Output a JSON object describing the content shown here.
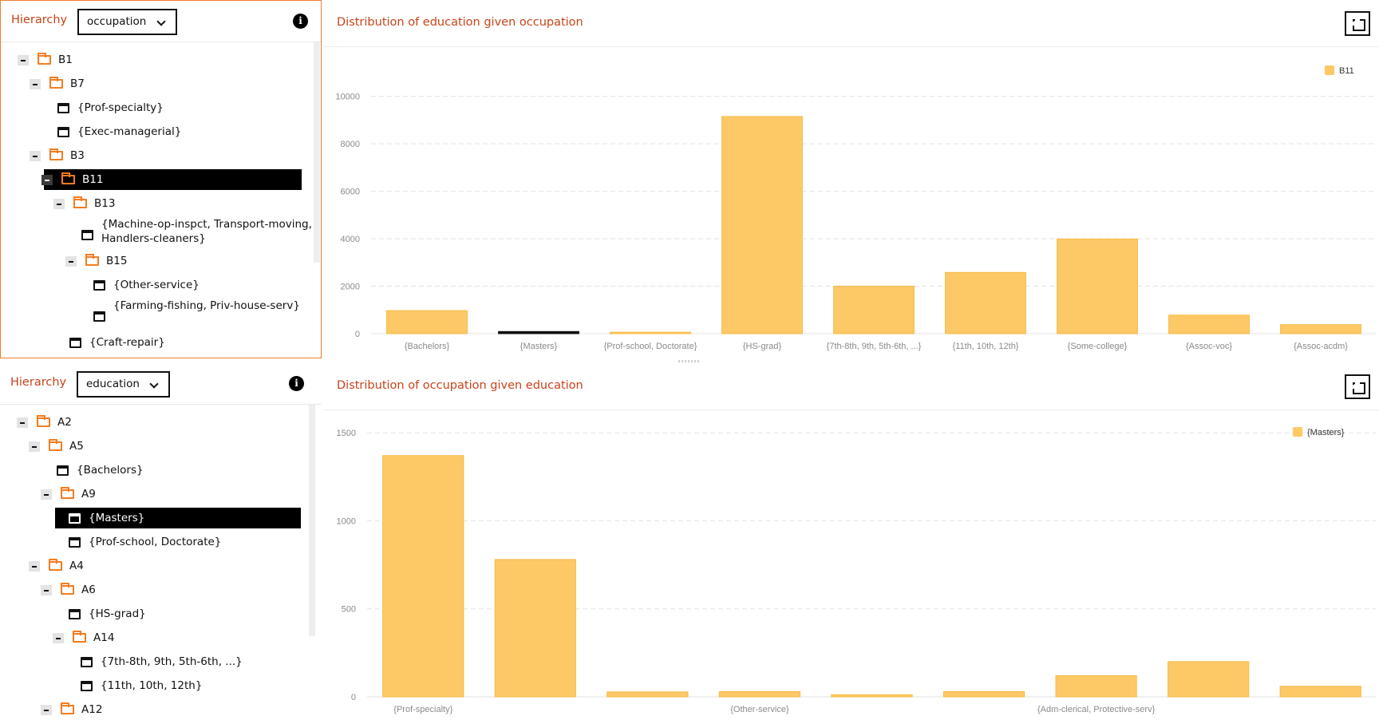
{
  "top": {
    "hierarchy_label": "Hierarchy",
    "select_value": "occupation",
    "chart_title": "Distribution of education given occupation",
    "tree": [
      {
        "label": "B1",
        "kind": "folder",
        "depth": 0
      },
      {
        "label": "B7",
        "kind": "folder",
        "depth": 1
      },
      {
        "label": "{Prof-specialty}",
        "kind": "leaf",
        "depth": 2
      },
      {
        "label": "{Exec-managerial}",
        "kind": "leaf",
        "depth": 2
      },
      {
        "label": "B3",
        "kind": "folder",
        "depth": 1
      },
      {
        "label": "B11",
        "kind": "folder",
        "depth": 2,
        "selected": true
      },
      {
        "label": "B13",
        "kind": "folder",
        "depth": 3
      },
      {
        "label": "{Machine-op-inspct, Transport-moving, Handlers-cleaners}",
        "kind": "leaf",
        "depth": 4,
        "wrap": true
      },
      {
        "label": "B15",
        "kind": "folder",
        "depth": 4
      },
      {
        "label": "{Other-service}",
        "kind": "leaf",
        "depth": 5
      },
      {
        "label": "{Farming-fishing, Priv-house-serv}",
        "kind": "leaf",
        "depth": 5,
        "wrap": true
      },
      {
        "label": "{Craft-repair}",
        "kind": "leaf",
        "depth": 3
      }
    ]
  },
  "bottom": {
    "hierarchy_label": "Hierarchy",
    "select_value": "education",
    "chart_title": "Distribution of occupation given education",
    "tree": [
      {
        "label": "A2",
        "kind": "folder",
        "depth": 0
      },
      {
        "label": "A5",
        "kind": "folder",
        "depth": 1
      },
      {
        "label": "{Bachelors}",
        "kind": "leaf",
        "depth": 2
      },
      {
        "label": "A9",
        "kind": "folder",
        "depth": 2
      },
      {
        "label": "{Masters}",
        "kind": "leaf",
        "depth": 3,
        "selected": true
      },
      {
        "label": "{Prof-school, Doctorate}",
        "kind": "leaf",
        "depth": 3
      },
      {
        "label": "A4",
        "kind": "folder",
        "depth": 1
      },
      {
        "label": "A6",
        "kind": "folder",
        "depth": 2
      },
      {
        "label": "{HS-grad}",
        "kind": "leaf",
        "depth": 3
      },
      {
        "label": "A14",
        "kind": "folder",
        "depth": 3
      },
      {
        "label": "{7th-8th, 9th, 5th-6th, ...}",
        "kind": "leaf",
        "depth": 4
      },
      {
        "label": "{11th, 10th, 12th}",
        "kind": "leaf",
        "depth": 4
      },
      {
        "label": "A12",
        "kind": "folder",
        "depth": 2
      }
    ]
  },
  "colors": {
    "bar": "#fdc967",
    "bar_stroke": "#f5b942",
    "accent": "#c8431a",
    "folder": "#f47c20"
  },
  "chart_data": [
    {
      "type": "bar",
      "title": "Distribution of education given occupation",
      "categories": [
        "{Bachelors}",
        "{Masters}",
        "{Prof-school, Doctorate}",
        "{HS-grad}",
        "{7th-8th, 9th, 5th-6th, ...}",
        "{11th, 10th, 12th}",
        "{Some-college}",
        "{Assoc-voc}",
        "{Assoc-acdm}"
      ],
      "series": [
        {
          "name": "B11",
          "values": [
            970,
            90,
            60,
            9150,
            2000,
            2580,
            3990,
            780,
            380
          ]
        }
      ],
      "highlight_index": 1,
      "ylim": [
        0,
        11000
      ],
      "yticks": [
        0,
        2000,
        4000,
        6000,
        8000,
        10000
      ],
      "grid": true,
      "legend": "top-right"
    },
    {
      "type": "bar",
      "title": "Distribution of occupation given education",
      "categories": [
        "{Prof-specialty}",
        "",
        "",
        "{Other-service}",
        "",
        "",
        "{Adm-clerical, Protective-serv}",
        "",
        ""
      ],
      "series": [
        {
          "name": "{Masters}",
          "values": [
            1370,
            780,
            28,
            30,
            12,
            30,
            120,
            200,
            60
          ]
        }
      ],
      "ylim": [
        0,
        1600
      ],
      "yticks": [
        0,
        500,
        1000,
        1500
      ],
      "grid": true,
      "legend": "top-right"
    }
  ]
}
